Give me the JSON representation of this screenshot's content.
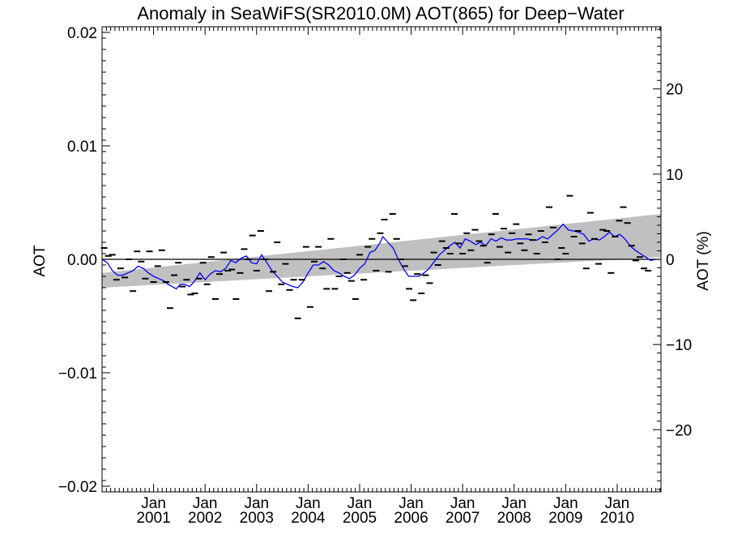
{
  "chart_data": {
    "type": "scatter",
    "title": "Anomaly in SeaWiFS(SR2010.0M) AOT(865) for Deep−Water",
    "ylabel": "AOT",
    "y2label": "AOT (%)",
    "xlim": [
      2000.0,
      2010.85
    ],
    "ylim": [
      -0.0205,
      0.0205
    ],
    "y2lim": [
      -27.3,
      27.3
    ],
    "yticks": [
      {
        "value": 0.02,
        "label": "0.02"
      },
      {
        "value": 0.01,
        "label": "0.01"
      },
      {
        "value": 0.0,
        "label": "0.00"
      },
      {
        "value": -0.01,
        "label": "−0.01"
      },
      {
        "value": -0.02,
        "label": "−0.02"
      }
    ],
    "y2ticks": [
      {
        "value": 20,
        "label": "20"
      },
      {
        "value": 10,
        "label": "10"
      },
      {
        "value": 0,
        "label": "0"
      },
      {
        "value": -10,
        "label": "−10"
      },
      {
        "value": -20,
        "label": "−20"
      }
    ],
    "xticks": [
      {
        "value": 2001.0,
        "line1": "Jan",
        "line2": "2001"
      },
      {
        "value": 2002.0,
        "line1": "Jan",
        "line2": "2002"
      },
      {
        "value": 2003.0,
        "line1": "Jan",
        "line2": "2003"
      },
      {
        "value": 2004.0,
        "line1": "Jan",
        "line2": "2004"
      },
      {
        "value": 2005.0,
        "line1": "Jan",
        "line2": "2005"
      },
      {
        "value": 2006.0,
        "line1": "Jan",
        "line2": "2006"
      },
      {
        "value": 2007.0,
        "line1": "Jan",
        "line2": "2007"
      },
      {
        "value": 2008.0,
        "line1": "Jan",
        "line2": "2008"
      },
      {
        "value": 2009.0,
        "line1": "Jan",
        "line2": "2009"
      },
      {
        "value": 2010.0,
        "line1": "Jan",
        "line2": "2010"
      }
    ],
    "confidence_band": {
      "color": "#c0c0c0",
      "lower": [
        [
          2000.0,
          -0.0025
        ],
        [
          2010.85,
          0.0002
        ]
      ],
      "upper": [
        [
          2000.0,
          -0.0012
        ],
        [
          2010.85,
          0.004
        ]
      ]
    },
    "zero_line": {
      "value": 0.0,
      "color": "#000000"
    },
    "series": [
      {
        "type": "marker",
        "color": "#000000",
        "points": [
          [
            2000.04,
            0.001
          ],
          [
            2000.12,
            0.0003
          ],
          [
            2000.2,
            0.0004
          ],
          [
            2000.28,
            -0.0018
          ],
          [
            2000.36,
            -0.0008
          ],
          [
            2000.44,
            -0.0016
          ],
          [
            2000.52,
            0.0
          ],
          [
            2000.6,
            -0.0028
          ],
          [
            2000.68,
            0.0007
          ],
          [
            2000.76,
            -0.0002
          ],
          [
            2000.84,
            -0.0017
          ],
          [
            2000.92,
            0.0007
          ],
          [
            2001.0,
            -0.002
          ],
          [
            2001.08,
            -0.0006
          ],
          [
            2001.16,
            0.0008
          ],
          [
            2001.24,
            -0.002
          ],
          [
            2001.32,
            -0.0043
          ],
          [
            2001.4,
            -0.0014
          ],
          [
            2001.48,
            -0.0003
          ],
          [
            2001.56,
            -0.0024
          ],
          [
            2001.64,
            -0.0018
          ],
          [
            2001.72,
            -0.0031
          ],
          [
            2001.8,
            -0.003
          ],
          [
            2001.88,
            -0.0017
          ],
          [
            2001.96,
            -0.0003
          ],
          [
            2002.04,
            -0.0022
          ],
          [
            2002.12,
            0.0002
          ],
          [
            2002.2,
            -0.0035
          ],
          [
            2002.28,
            -0.0013
          ],
          [
            2002.36,
            0.0006
          ],
          [
            2002.44,
            -0.001
          ],
          [
            2002.52,
            -0.0009
          ],
          [
            2002.6,
            -0.0035
          ],
          [
            2002.68,
            -0.0012
          ],
          [
            2002.76,
            0.0009
          ],
          [
            2002.84,
            0.0
          ],
          [
            2002.92,
            0.0021
          ],
          [
            2003.0,
            -0.001
          ],
          [
            2003.08,
            0.0025
          ],
          [
            2003.16,
            0.0
          ],
          [
            2003.24,
            -0.0028
          ],
          [
            2003.32,
            -0.0011
          ],
          [
            2003.4,
            0.0015
          ],
          [
            2003.48,
            -0.0022
          ],
          [
            2003.56,
            -0.0004
          ],
          [
            2003.64,
            -0.0027
          ],
          [
            2003.72,
            -0.0018
          ],
          [
            2003.8,
            -0.0052
          ],
          [
            2003.88,
            -0.0018
          ],
          [
            2003.96,
            0.0011
          ],
          [
            2004.04,
            -0.0042
          ],
          [
            2004.12,
            -0.0002
          ],
          [
            2004.2,
            0.0011
          ],
          [
            2004.28,
            -0.0008
          ],
          [
            2004.36,
            -0.0026
          ],
          [
            2004.44,
            0.0018
          ],
          [
            2004.52,
            -0.0026
          ],
          [
            2004.6,
            -0.0015
          ],
          [
            2004.68,
            0.0
          ],
          [
            2004.76,
            -0.0012
          ],
          [
            2004.84,
            -0.0019
          ],
          [
            2004.92,
            -0.0035
          ],
          [
            2005.0,
            0.0004
          ],
          [
            2005.08,
            -0.0018
          ],
          [
            2005.16,
            0.0011
          ],
          [
            2005.24,
            0.0018
          ],
          [
            2005.32,
            -0.001
          ],
          [
            2005.4,
            0.0023
          ],
          [
            2005.48,
            0.0035
          ],
          [
            2005.56,
            -0.0011
          ],
          [
            2005.64,
            0.004
          ],
          [
            2005.72,
            0.0018
          ],
          [
            2005.8,
            0.0
          ],
          [
            2005.88,
            -0.0006
          ],
          [
            2005.96,
            -0.0026
          ],
          [
            2006.04,
            -0.0036
          ],
          [
            2006.12,
            -0.0013
          ],
          [
            2006.2,
            -0.003
          ],
          [
            2006.28,
            -0.0014
          ],
          [
            2006.36,
            -0.0021
          ],
          [
            2006.44,
            0.0006
          ],
          [
            2006.52,
            -0.0005
          ],
          [
            2006.6,
            0.0016
          ],
          [
            2006.68,
            0.001
          ],
          [
            2006.76,
            0.0005
          ],
          [
            2006.84,
            0.004
          ],
          [
            2006.92,
            0.0014
          ],
          [
            2007.0,
            0.0005
          ],
          [
            2007.08,
            0.0023
          ],
          [
            2007.16,
            0.0008
          ],
          [
            2007.24,
            0.0026
          ],
          [
            2007.32,
            0.0016
          ],
          [
            2007.4,
            0.0012
          ],
          [
            2007.48,
            -0.0003
          ],
          [
            2007.56,
            0.0022
          ],
          [
            2007.64,
            0.004
          ],
          [
            2007.72,
            0.0011
          ],
          [
            2007.8,
            0.0027
          ],
          [
            2007.88,
            0.0006
          ],
          [
            2007.96,
            0.0023
          ],
          [
            2008.04,
            0.0031
          ],
          [
            2008.12,
            0.0014
          ],
          [
            2008.2,
            0.0008
          ],
          [
            2008.28,
            0.0022
          ],
          [
            2008.36,
            0.0017
          ],
          [
            2008.44,
            0.0005
          ],
          [
            2008.52,
            0.0025
          ],
          [
            2008.6,
            0.0015
          ],
          [
            2008.68,
            0.0046
          ],
          [
            2008.76,
            0.0028
          ],
          [
            2008.84,
            0.0
          ],
          [
            2008.92,
            0.001
          ],
          [
            2009.0,
            0.0005
          ],
          [
            2009.08,
            0.0056
          ],
          [
            2009.16,
            0.002
          ],
          [
            2009.24,
            0.0025
          ],
          [
            2009.32,
            0.0014
          ],
          [
            2009.4,
            -0.0008
          ],
          [
            2009.48,
            0.0041
          ],
          [
            2009.56,
            0.0018
          ],
          [
            2009.64,
            -0.0004
          ],
          [
            2009.72,
            0.0026
          ],
          [
            2009.8,
            0.0025
          ],
          [
            2009.88,
            -0.0012
          ],
          [
            2009.96,
            0.002
          ],
          [
            2010.04,
            0.0034
          ],
          [
            2010.12,
            0.0046
          ],
          [
            2010.2,
            0.0032
          ],
          [
            2010.28,
            0.0012
          ],
          [
            2010.36,
            -0.0001
          ],
          [
            2010.44,
            0.0002
          ],
          [
            2010.52,
            -0.0008
          ],
          [
            2010.6,
            -0.001
          ]
        ]
      },
      {
        "type": "line",
        "color": "#0000ff",
        "points": [
          [
            2000.0,
            0.0
          ],
          [
            2000.1,
            -0.0003
          ],
          [
            2000.2,
            -0.001
          ],
          [
            2000.3,
            -0.0014
          ],
          [
            2000.4,
            -0.0014
          ],
          [
            2000.5,
            -0.0012
          ],
          [
            2000.6,
            -0.001
          ],
          [
            2000.7,
            -0.0006
          ],
          [
            2000.8,
            -0.0008
          ],
          [
            2000.9,
            -0.0012
          ],
          [
            2001.0,
            -0.0015
          ],
          [
            2001.1,
            -0.0017
          ],
          [
            2001.2,
            -0.0019
          ],
          [
            2001.28,
            -0.0022
          ],
          [
            2001.36,
            -0.0024
          ],
          [
            2001.44,
            -0.0026
          ],
          [
            2001.52,
            -0.0022
          ],
          [
            2001.6,
            -0.0022
          ],
          [
            2001.7,
            -0.0024
          ],
          [
            2001.8,
            -0.0019
          ],
          [
            2001.9,
            -0.0012
          ],
          [
            2002.0,
            -0.0018
          ],
          [
            2002.1,
            -0.0013
          ],
          [
            2002.2,
            -0.001
          ],
          [
            2002.3,
            -0.0011
          ],
          [
            2002.4,
            -0.0008
          ],
          [
            2002.5,
            -0.0001
          ],
          [
            2002.6,
            -0.0003
          ],
          [
            2002.7,
            0.0001
          ],
          [
            2002.8,
            0.0003
          ],
          [
            2002.9,
            -0.0003
          ],
          [
            2003.0,
            -0.0004
          ],
          [
            2003.1,
            0.0004
          ],
          [
            2003.2,
            -0.0003
          ],
          [
            2003.3,
            -0.001
          ],
          [
            2003.4,
            -0.0015
          ],
          [
            2003.5,
            -0.002
          ],
          [
            2003.6,
            -0.0022
          ],
          [
            2003.7,
            -0.0024
          ],
          [
            2003.8,
            -0.0025
          ],
          [
            2003.9,
            -0.002
          ],
          [
            2004.0,
            -0.0012
          ],
          [
            2004.1,
            -0.0005
          ],
          [
            2004.2,
            -0.0005
          ],
          [
            2004.3,
            -0.0002
          ],
          [
            2004.4,
            -0.0005
          ],
          [
            2004.5,
            -0.001
          ],
          [
            2004.6,
            -0.0012
          ],
          [
            2004.7,
            -0.0015
          ],
          [
            2004.8,
            -0.0017
          ],
          [
            2004.9,
            -0.0014
          ],
          [
            2005.0,
            -0.0008
          ],
          [
            2005.1,
            -0.0004
          ],
          [
            2005.2,
            0.0006
          ],
          [
            2005.3,
            0.0008
          ],
          [
            2005.4,
            0.0015
          ],
          [
            2005.45,
            0.002
          ],
          [
            2005.55,
            0.0015
          ],
          [
            2005.65,
            0.001
          ],
          [
            2005.75,
            0.0
          ],
          [
            2005.85,
            -0.0008
          ],
          [
            2005.95,
            -0.0015
          ],
          [
            2006.05,
            -0.0015
          ],
          [
            2006.15,
            -0.0015
          ],
          [
            2006.25,
            -0.0012
          ],
          [
            2006.35,
            -0.0008
          ],
          [
            2006.45,
            -0.0002
          ],
          [
            2006.55,
            0.0004
          ],
          [
            2006.65,
            0.0008
          ],
          [
            2006.75,
            0.0012
          ],
          [
            2006.85,
            0.0015
          ],
          [
            2006.95,
            0.001
          ],
          [
            2007.05,
            0.0018
          ],
          [
            2007.15,
            0.0016
          ],
          [
            2007.25,
            0.0013
          ],
          [
            2007.35,
            0.0015
          ],
          [
            2007.45,
            0.0012
          ],
          [
            2007.55,
            0.0018
          ],
          [
            2007.65,
            0.0016
          ],
          [
            2007.75,
            0.0019
          ],
          [
            2007.85,
            0.0017
          ],
          [
            2007.95,
            0.0017
          ],
          [
            2008.05,
            0.0018
          ],
          [
            2008.15,
            0.0018
          ],
          [
            2008.25,
            0.0018
          ],
          [
            2008.35,
            0.0017
          ],
          [
            2008.45,
            0.0017
          ],
          [
            2008.55,
            0.002
          ],
          [
            2008.65,
            0.0018
          ],
          [
            2008.75,
            0.0022
          ],
          [
            2008.85,
            0.0026
          ],
          [
            2008.95,
            0.0031
          ],
          [
            2009.05,
            0.0026
          ],
          [
            2009.15,
            0.0025
          ],
          [
            2009.25,
            0.0024
          ],
          [
            2009.35,
            0.0022
          ],
          [
            2009.45,
            0.0016
          ],
          [
            2009.55,
            0.0018
          ],
          [
            2009.65,
            0.0017
          ],
          [
            2009.75,
            0.002
          ],
          [
            2009.85,
            0.0024
          ],
          [
            2009.95,
            0.002
          ],
          [
            2010.05,
            0.0022
          ],
          [
            2010.15,
            0.0018
          ],
          [
            2010.25,
            0.0012
          ],
          [
            2010.35,
            0.0008
          ],
          [
            2010.45,
            0.0005
          ],
          [
            2010.55,
            0.0002
          ],
          [
            2010.65,
            -0.0001
          ],
          [
            2010.75,
            0.0
          ]
        ]
      }
    ]
  }
}
